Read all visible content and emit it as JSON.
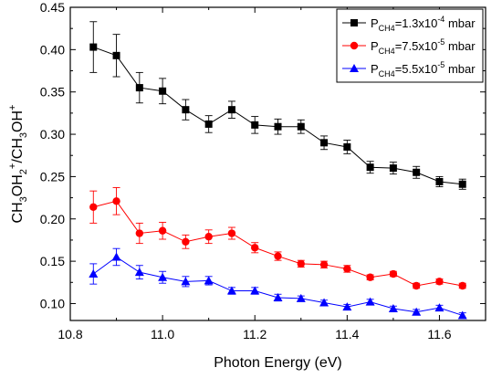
{
  "chart_data": {
    "type": "line",
    "xlabel": "Photon Energy (eV)",
    "ylabel": {
      "parts": [
        {
          "text": "CH",
          "pos": "base"
        },
        {
          "text": "3",
          "pos": "sub"
        },
        {
          "text": "OH",
          "pos": "base"
        },
        {
          "text": "2",
          "pos": "sub"
        },
        {
          "text": "+",
          "pos": "sup"
        },
        {
          "text": "/CH",
          "pos": "base"
        },
        {
          "text": "3",
          "pos": "sub"
        },
        {
          "text": "OH",
          "pos": "base"
        },
        {
          "text": "+",
          "pos": "sup"
        }
      ]
    },
    "xlim": [
      10.8,
      11.7
    ],
    "ylim": [
      0.08,
      0.45
    ],
    "x_ticks": [
      "10.8",
      "11.0",
      "11.2",
      "11.4",
      "11.6"
    ],
    "x_tick_values": [
      10.8,
      11.0,
      11.2,
      11.4,
      11.6
    ],
    "y_ticks": [
      "0.10",
      "0.15",
      "0.20",
      "0.25",
      "0.30",
      "0.35",
      "0.40",
      "0.45"
    ],
    "y_tick_values": [
      0.1,
      0.15,
      0.2,
      0.25,
      0.3,
      0.35,
      0.4,
      0.45
    ],
    "grid": false,
    "legend_position": "top-right",
    "x": [
      10.85,
      10.9,
      10.95,
      11.0,
      11.05,
      11.1,
      11.15,
      11.2,
      11.25,
      11.3,
      11.35,
      11.4,
      11.45,
      11.5,
      11.55,
      11.6,
      11.65
    ],
    "series": [
      {
        "legend": {
          "p": "P",
          "sub": "CH4",
          "mid": "=1.3x10",
          "sup": "-4",
          "tail": " mbar"
        },
        "color": "#000000",
        "marker": "square",
        "values": [
          0.403,
          0.393,
          0.355,
          0.351,
          0.329,
          0.312,
          0.329,
          0.311,
          0.309,
          0.309,
          0.29,
          0.285,
          0.261,
          0.26,
          0.255,
          0.244,
          0.241
        ],
        "errors": [
          0.03,
          0.025,
          0.018,
          0.015,
          0.012,
          0.01,
          0.01,
          0.01,
          0.009,
          0.008,
          0.008,
          0.008,
          0.007,
          0.007,
          0.007,
          0.006,
          0.006
        ]
      },
      {
        "legend": {
          "p": "P",
          "sub": "CH4",
          "mid": "=7.5x10",
          "sup": "-5",
          "tail": " mbar"
        },
        "color": "#ff0000",
        "marker": "circle",
        "values": [
          0.214,
          0.221,
          0.183,
          0.186,
          0.173,
          0.179,
          0.183,
          0.166,
          0.156,
          0.147,
          0.146,
          0.141,
          0.131,
          0.135,
          0.121,
          0.126,
          0.121
        ],
        "errors": [
          0.019,
          0.016,
          0.012,
          0.01,
          0.008,
          0.008,
          0.007,
          0.006,
          0.005,
          0.004,
          0.004,
          0.004,
          0.003,
          0.003,
          0.003,
          0.003,
          0.003
        ]
      },
      {
        "legend": {
          "p": "P",
          "sub": "CH4",
          "mid": "=5.5x10",
          "sup": "-5",
          "tail": " mbar"
        },
        "color": "#0000ff",
        "marker": "triangle",
        "values": [
          0.135,
          0.155,
          0.137,
          0.131,
          0.126,
          0.127,
          0.115,
          0.115,
          0.107,
          0.106,
          0.101,
          0.096,
          0.102,
          0.094,
          0.09,
          0.095,
          0.086
        ],
        "errors": [
          0.012,
          0.01,
          0.008,
          0.007,
          0.006,
          0.005,
          0.004,
          0.004,
          0.004,
          0.003,
          0.003,
          0.003,
          0.003,
          0.003,
          0.003,
          0.003,
          0.003
        ]
      }
    ]
  }
}
